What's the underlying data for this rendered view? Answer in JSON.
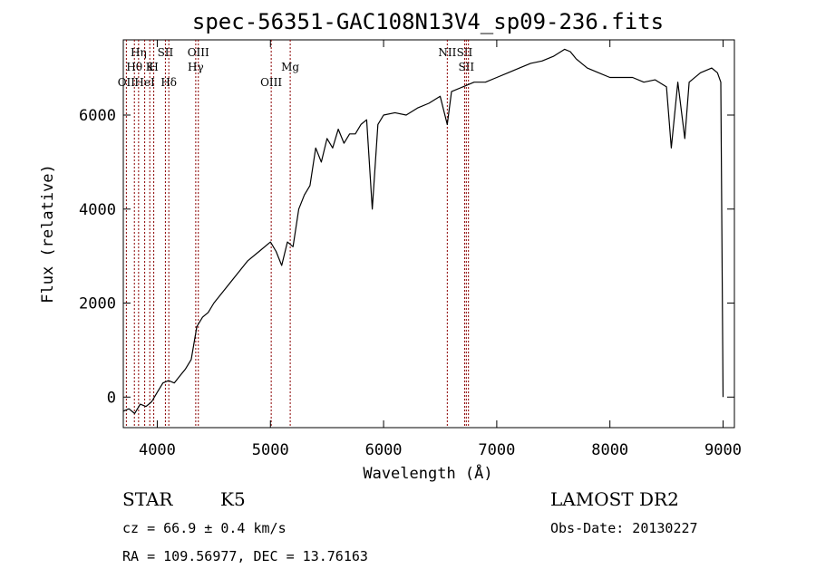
{
  "chart_data": {
    "type": "line",
    "title": "spec-56351-GAC108N13V4_sp09-236.fits",
    "xlabel": "Wavelength (Å)",
    "ylabel": "Flux (relative)",
    "xlim": [
      3700,
      9100
    ],
    "ylim": [
      -650,
      7600
    ],
    "xticks": [
      4000,
      5000,
      6000,
      7000,
      8000,
      9000
    ],
    "yticks": [
      0,
      2000,
      4000,
      6000
    ],
    "grid": false,
    "line_color": "#000000",
    "marker_color": "#8b0000",
    "series": [
      {
        "x": [
          3700,
          3750,
          3800,
          3850,
          3900,
          3950,
          4000,
          4050,
          4100,
          4150,
          4200,
          4250,
          4300,
          4350,
          4400,
          4450,
          4500,
          4600,
          4700,
          4800,
          4900,
          5000,
          5050,
          5100,
          5150,
          5200,
          5250,
          5300,
          5350,
          5400,
          5450,
          5500,
          5550,
          5600,
          5650,
          5700,
          5750,
          5800,
          5850,
          5900,
          5950,
          6000,
          6100,
          6200,
          6300,
          6400,
          6500,
          6563,
          6600,
          6700,
          6800,
          6900,
          7000,
          7100,
          7200,
          7300,
          7400,
          7500,
          7600,
          7650,
          7700,
          7800,
          7900,
          8000,
          8100,
          8200,
          8300,
          8400,
          8500,
          8542,
          8600,
          8662,
          8700,
          8800,
          8900,
          8950,
          8980,
          9000
        ],
        "y": [
          -300,
          -250,
          -350,
          -150,
          -200,
          -100,
          100,
          300,
          350,
          300,
          450,
          600,
          800,
          1500,
          1700,
          1800,
          2000,
          2300,
          2600,
          2900,
          3100,
          3300,
          3100,
          2800,
          3300,
          3200,
          4000,
          4300,
          4500,
          5300,
          5000,
          5500,
          5300,
          5700,
          5400,
          5600,
          5600,
          5800,
          5900,
          4000,
          5800,
          6000,
          6050,
          6000,
          6150,
          6250,
          6400,
          5800,
          6500,
          6600,
          6700,
          6700,
          6800,
          6900,
          7000,
          7100,
          7150,
          7250,
          7400,
          7350,
          7200,
          7000,
          6900,
          6800,
          6800,
          6800,
          6700,
          6750,
          6600,
          5300,
          6700,
          5500,
          6700,
          6900,
          7000,
          6900,
          6700,
          0
        ]
      }
    ],
    "line_markers": [
      {
        "x": 3727,
        "label": "OII",
        "row": 3
      },
      {
        "x": 3798,
        "label": "Hθ",
        "row": 2
      },
      {
        "x": 3835,
        "label": "Hη",
        "row": 1
      },
      {
        "x": 3889,
        "label": "HeI",
        "row": 3
      },
      {
        "x": 3934,
        "label": "K",
        "row": 2
      },
      {
        "x": 3969,
        "label": "H",
        "row": 2
      },
      {
        "x": 4072,
        "label": "SII",
        "row": 1
      },
      {
        "x": 4102,
        "label": "Hδ",
        "row": 3
      },
      {
        "x": 4340,
        "label": "Hγ",
        "row": 2
      },
      {
        "x": 4363,
        "label": "OIII",
        "row": 1
      },
      {
        "x": 5007,
        "label": "OIII",
        "row": 3
      },
      {
        "x": 5175,
        "label": "Mg",
        "row": 2
      },
      {
        "x": 6563,
        "label": "NII",
        "row": 1
      },
      {
        "x": 6716,
        "label": "SII",
        "row": 1
      },
      {
        "x": 6731,
        "label": "SII",
        "row": 2
      },
      {
        "x": 6750,
        "label": "",
        "row": 3
      }
    ]
  },
  "info": {
    "class": "STAR",
    "subclass": "K5",
    "survey": "LAMOST DR2",
    "cz": "cz = 66.9 ± 0.4 km/s",
    "obs_date": "Obs-Date: 20130227",
    "coords": "RA = 109.56977, DEC =  13.76163"
  }
}
